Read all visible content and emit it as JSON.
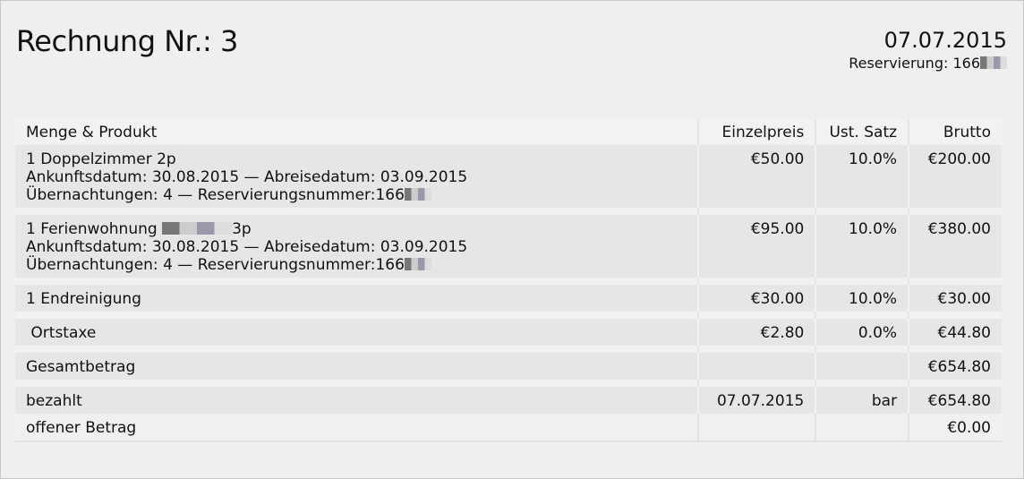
{
  "title": "Rechnung Nr.: 3",
  "date": "07.07.2015",
  "reservation": "Reservierung: 166",
  "columns": [
    "Menge & Produkt",
    "Einzelpreis",
    "Ust. Satz",
    "Brutto"
  ],
  "items": [
    {
      "name": "1 Doppelzimmer 2p",
      "arrival": "Ankunftsdatum: 30.08.2015 — Abreisedatum: 03.09.2015",
      "nights": "Übernachtungen: 4 — Reservierungsnummer:166",
      "price": "€50.00",
      "vat": "10.0%",
      "gross": "€200.00"
    },
    {
      "name_prefix": "1 Ferienwohnung ",
      "name_suffix": "3p",
      "arrival": "Ankunftsdatum: 30.08.2015 — Abreisedatum: 03.09.2015",
      "nights": "Übernachtungen: 4 — Reservierungsnummer:166",
      "price": "€95.00",
      "vat": "10.0%",
      "gross": "€380.00"
    },
    {
      "name": "1 Endreinigung",
      "price": "€30.00",
      "vat": "10.0%",
      "gross": "€30.00"
    },
    {
      "name": " Ortstaxe",
      "price": "€2.80",
      "vat": "0.0%",
      "gross": "€44.80"
    }
  ],
  "total": {
    "label": "Gesamtbetrag",
    "value": "€654.80"
  },
  "paid": {
    "label": "bezahlt",
    "date": "07.07.2015",
    "method": "bar",
    "value": "€654.80"
  },
  "open": {
    "label": "offener Betrag",
    "value": "€0.00"
  }
}
